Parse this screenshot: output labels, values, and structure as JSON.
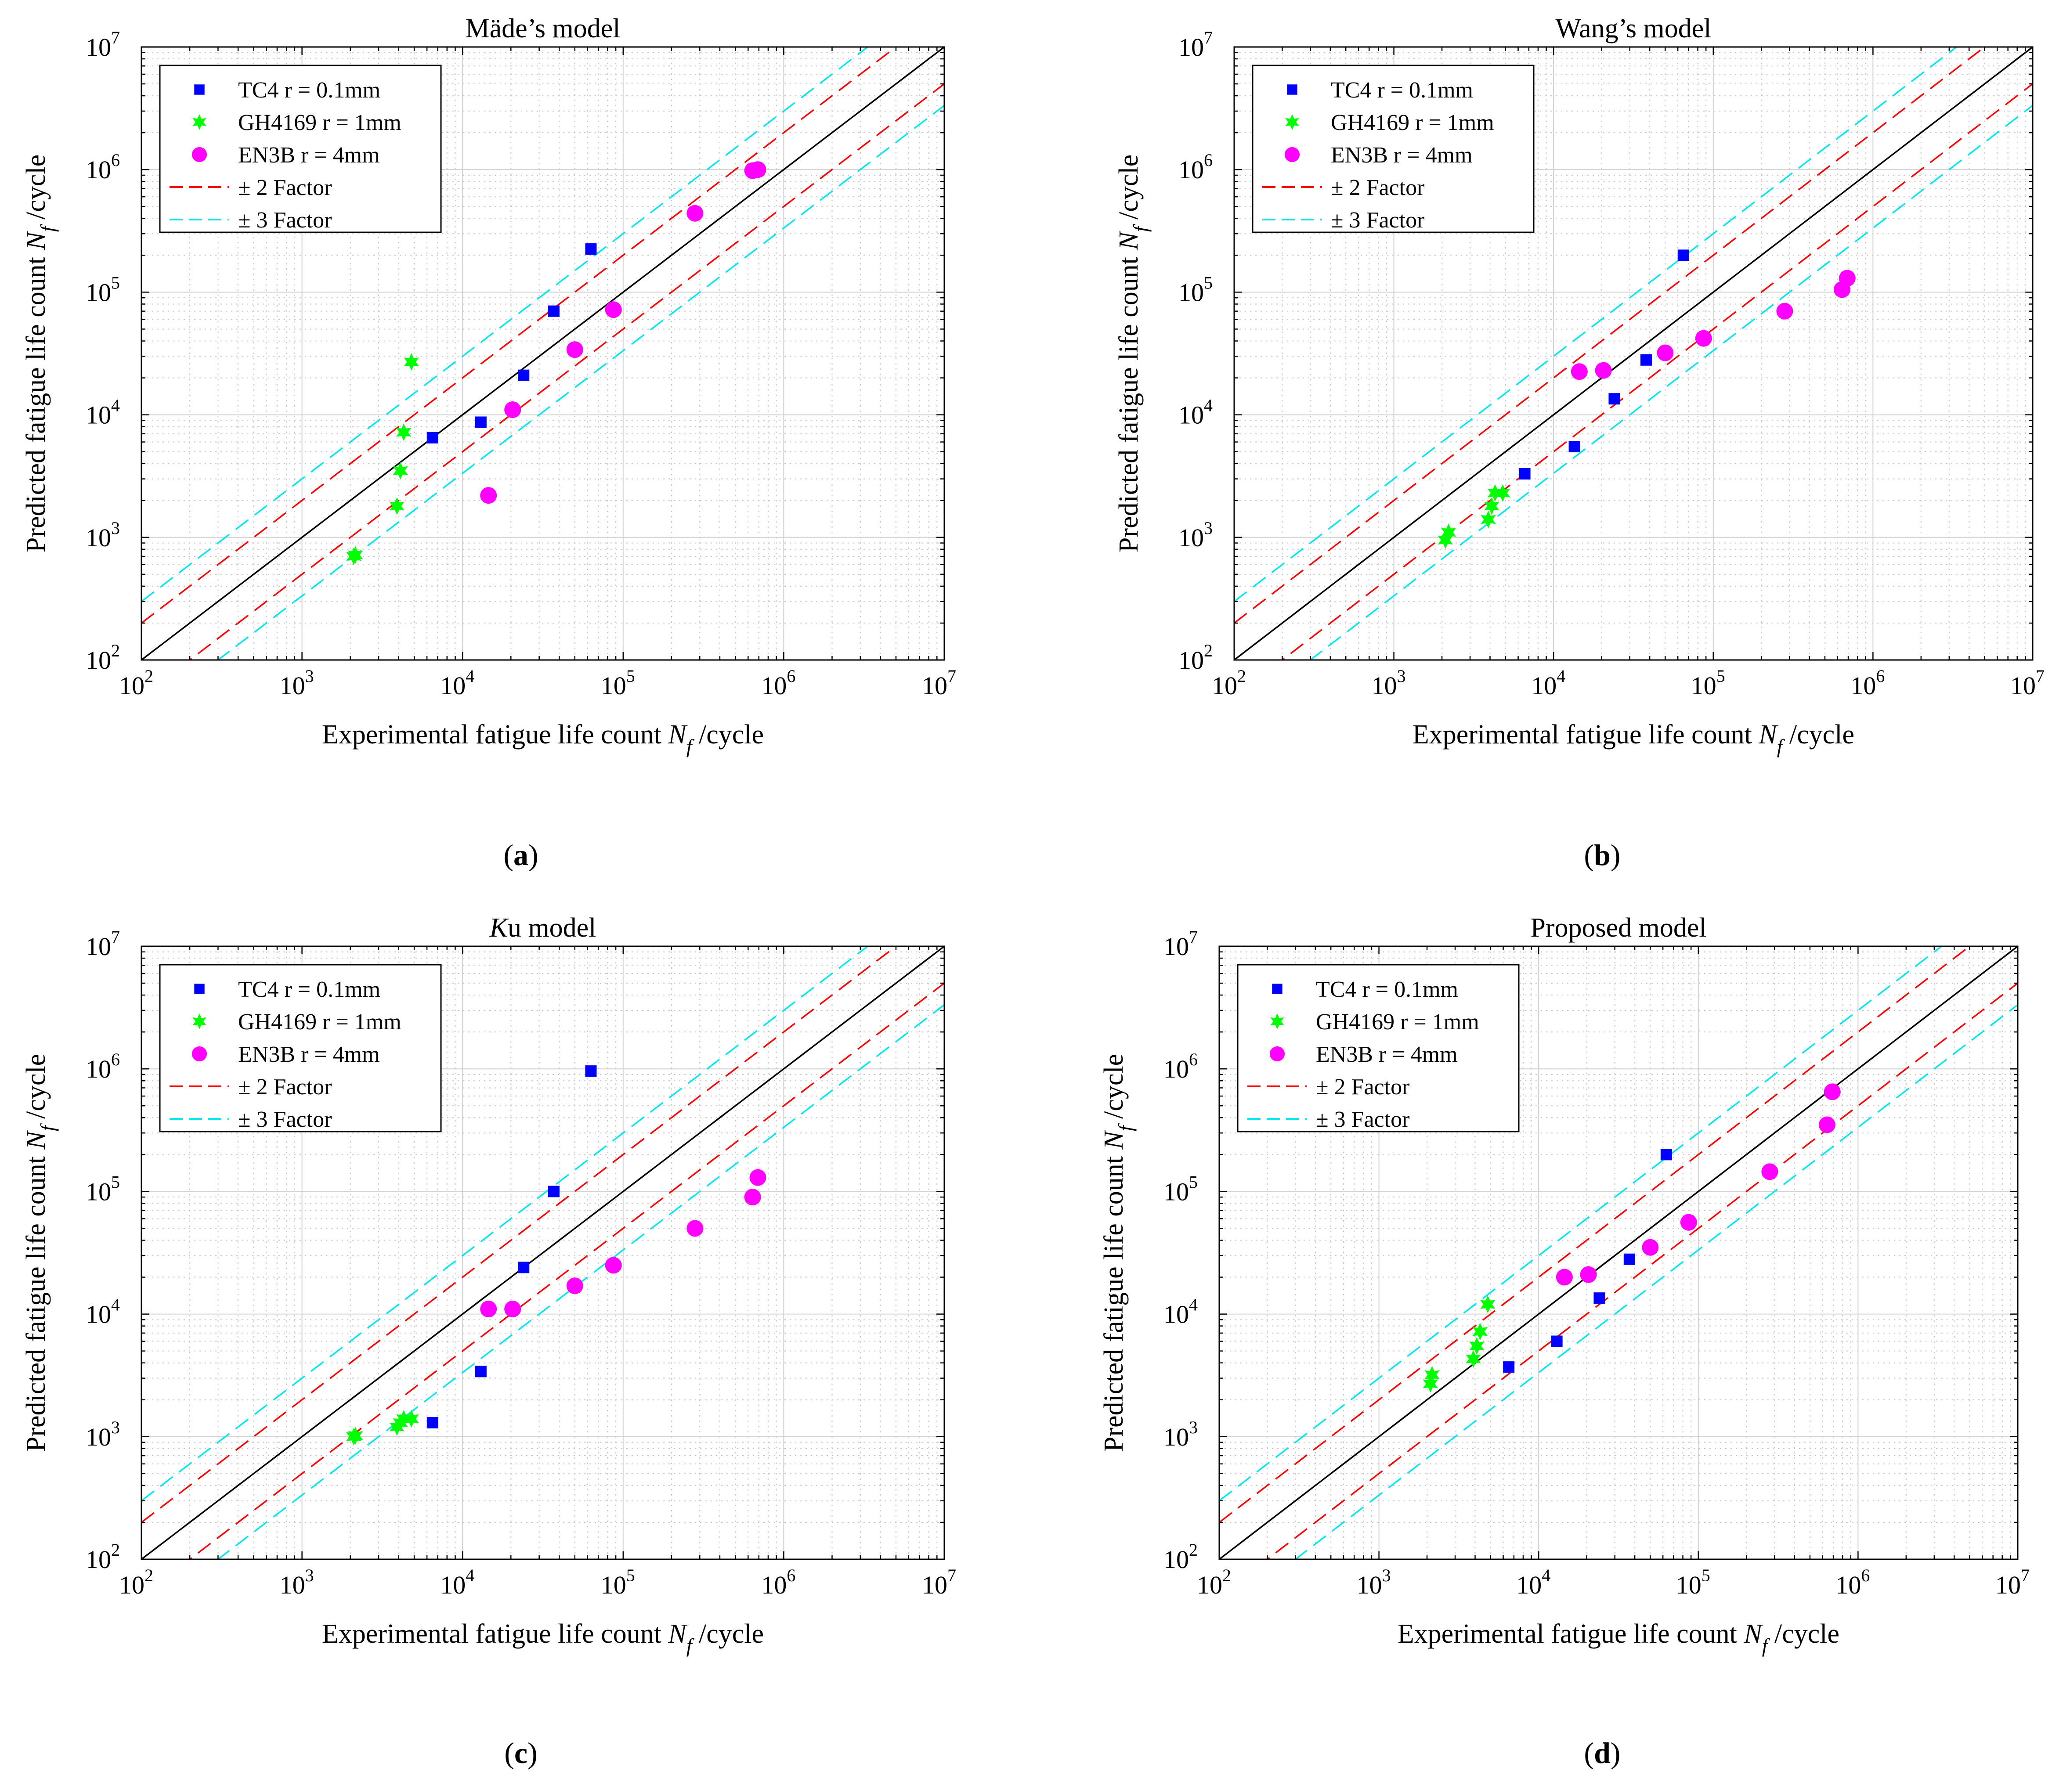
{
  "chart_data": [
    {
      "type": "scatter",
      "panel_label": "a",
      "title": "Mäde’s model",
      "title_parts": [
        {
          "text": "Mäde’s model",
          "italic": false
        }
      ],
      "xlabel": {
        "prefix": "Experimental fatigue life count ",
        "symbol": "N",
        "sub": "f",
        "suffix": " /cycle"
      },
      "ylabel": {
        "prefix": "Predicted fatigue life count ",
        "symbol": "N",
        "sub": "f",
        "suffix": " /cycle"
      },
      "xscale": "log",
      "yscale": "log",
      "xlim": [
        100,
        10000000
      ],
      "ylim": [
        100,
        10000000
      ],
      "grid": true,
      "legend_position": "top-left",
      "series": [
        {
          "name": "TC4 r = 0.1mm",
          "marker": "square",
          "color": "#0000ff",
          "points": [
            [
              6500,
              6500
            ],
            [
              13000,
              8700
            ],
            [
              24000,
              21000
            ],
            [
              37000,
              70000
            ],
            [
              63000,
              225000
            ]
          ]
        },
        {
          "name": "GH4169 r = 1mm",
          "marker": "hexagram",
          "color": "#00ff00",
          "points": [
            [
              2100,
              700
            ],
            [
              2150,
              720
            ],
            [
              3900,
              1800
            ],
            [
              4100,
              3500
            ],
            [
              4300,
              7200
            ],
            [
              4800,
              27000
            ]
          ]
        },
        {
          "name": "EN3B r = 4mm",
          "marker": "circle",
          "color": "#ff00ff",
          "points": [
            [
              14500,
              2200
            ],
            [
              20500,
              11000
            ],
            [
              50000,
              34000
            ],
            [
              87000,
              72000
            ],
            [
              280000,
              440000
            ],
            [
              640000,
              980000
            ],
            [
              690000,
              1000000
            ]
          ]
        }
      ],
      "reference_lines": [
        {
          "name": "± 2 Factor",
          "factors": [
            2,
            0.5
          ],
          "style": "dashed",
          "color": "#ff0000"
        },
        {
          "name": "± 3 Factor",
          "factors": [
            3,
            0.3333
          ],
          "style": "dashed",
          "color": "#00e5ee"
        },
        {
          "name": "",
          "factors": [
            1
          ],
          "style": "solid",
          "color": "#000000"
        }
      ]
    },
    {
      "type": "scatter",
      "panel_label": "b",
      "title": "Wang’s model",
      "title_parts": [
        {
          "text": "Wang’s model",
          "italic": false
        }
      ],
      "xlabel": {
        "prefix": "Experimental fatigue life count ",
        "symbol": "N",
        "sub": "f",
        "suffix": " /cycle"
      },
      "ylabel": {
        "prefix": "Predicted fatigue life count ",
        "symbol": "N",
        "sub": "f",
        "suffix": " /cycle"
      },
      "xscale": "log",
      "yscale": "log",
      "xlim": [
        100,
        10000000
      ],
      "ylim": [
        100,
        10000000
      ],
      "grid": true,
      "legend_position": "top-left",
      "series": [
        {
          "name": "TC4 r = 0.1mm",
          "marker": "square",
          "color": "#0000ff",
          "points": [
            [
              6600,
              3300
            ],
            [
              13500,
              5500
            ],
            [
              24000,
              13500
            ],
            [
              38000,
              28000
            ],
            [
              65000,
              200000
            ]
          ]
        },
        {
          "name": "GH4169 r = 1mm",
          "marker": "hexagram",
          "color": "#00ff00",
          "points": [
            [
              2100,
              950
            ],
            [
              2200,
              1100
            ],
            [
              3900,
              1400
            ],
            [
              4100,
              1800
            ],
            [
              4300,
              2300
            ],
            [
              4800,
              2300
            ]
          ]
        },
        {
          "name": "EN3B r = 4mm",
          "marker": "circle",
          "color": "#ff00ff",
          "points": [
            [
              14500,
              22500
            ],
            [
              20500,
              23000
            ],
            [
              50000,
              32000
            ],
            [
              87000,
              42000
            ],
            [
              280000,
              70000
            ],
            [
              640000,
              105000
            ],
            [
              690000,
              130000
            ]
          ]
        }
      ],
      "reference_lines": [
        {
          "name": "± 2 Factor",
          "factors": [
            2,
            0.5
          ],
          "style": "dashed",
          "color": "#ff0000"
        },
        {
          "name": "± 3 Factor",
          "factors": [
            3,
            0.3333
          ],
          "style": "dashed",
          "color": "#00e5ee"
        },
        {
          "name": "",
          "factors": [
            1
          ],
          "style": "solid",
          "color": "#000000"
        }
      ]
    },
    {
      "type": "scatter",
      "panel_label": "c",
      "title": "Ku model",
      "title_parts": [
        {
          "text": "K",
          "italic": true
        },
        {
          "text": "u model",
          "italic": false
        }
      ],
      "xlabel": {
        "prefix": "Experimental fatigue life count ",
        "symbol": "N",
        "sub": "f",
        "suffix": " /cycle"
      },
      "ylabel": {
        "prefix": "Predicted fatigue life count ",
        "symbol": "N",
        "sub": "f",
        "suffix": " /cycle"
      },
      "xscale": "log",
      "yscale": "log",
      "xlim": [
        100,
        10000000
      ],
      "ylim": [
        100,
        10000000
      ],
      "grid": true,
      "legend_position": "top-left",
      "series": [
        {
          "name": "TC4 r = 0.1mm",
          "marker": "square",
          "color": "#0000ff",
          "points": [
            [
              6500,
              1300
            ],
            [
              13000,
              3400
            ],
            [
              24000,
              24000
            ],
            [
              37000,
              100000
            ],
            [
              63000,
              960000
            ]
          ]
        },
        {
          "name": "GH4169 r = 1mm",
          "marker": "hexagram",
          "color": "#00ff00",
          "points": [
            [
              2100,
              1000
            ],
            [
              2150,
              1020
            ],
            [
              3900,
              1200
            ],
            [
              4100,
              1300
            ],
            [
              4300,
              1400
            ],
            [
              4800,
              1400
            ]
          ]
        },
        {
          "name": "EN3B r = 4mm",
          "marker": "circle",
          "color": "#ff00ff",
          "points": [
            [
              14500,
              11000
            ],
            [
              20500,
              11000
            ],
            [
              50000,
              17000
            ],
            [
              87000,
              25000
            ],
            [
              280000,
              50000
            ],
            [
              640000,
              90000
            ],
            [
              690000,
              130000
            ]
          ]
        }
      ],
      "reference_lines": [
        {
          "name": "± 2 Factor",
          "factors": [
            2,
            0.5
          ],
          "style": "dashed",
          "color": "#ff0000"
        },
        {
          "name": "± 3 Factor",
          "factors": [
            3,
            0.3333
          ],
          "style": "dashed",
          "color": "#00e5ee"
        },
        {
          "name": "",
          "factors": [
            1
          ],
          "style": "solid",
          "color": "#000000"
        }
      ]
    },
    {
      "type": "scatter",
      "panel_label": "d",
      "title": "Proposed model",
      "title_parts": [
        {
          "text": "Proposed model",
          "italic": false
        }
      ],
      "xlabel": {
        "prefix": "Experimental fatigue life count ",
        "symbol": "N",
        "sub": "f",
        "suffix": " /cycle"
      },
      "ylabel": {
        "prefix": "Predicted fatigue life count ",
        "symbol": "N",
        "sub": "f",
        "suffix": " /cycle"
      },
      "xscale": "log",
      "yscale": "log",
      "xlim": [
        100,
        10000000
      ],
      "ylim": [
        100,
        10000000
      ],
      "grid": true,
      "legend_position": "top-left",
      "series": [
        {
          "name": "TC4 r = 0.1mm",
          "marker": "square",
          "color": "#0000ff",
          "points": [
            [
              6500,
              3700
            ],
            [
              13000,
              6000
            ],
            [
              24000,
              13500
            ],
            [
              37000,
              28000
            ],
            [
              63000,
              200000
            ]
          ]
        },
        {
          "name": "GH4169 r = 1mm",
          "marker": "hexagram",
          "color": "#00ff00",
          "points": [
            [
              2100,
              2700
            ],
            [
              2150,
              3200
            ],
            [
              3900,
              4300
            ],
            [
              4100,
              5500
            ],
            [
              4300,
              7200
            ],
            [
              4800,
              12000
            ]
          ]
        },
        {
          "name": "EN3B r = 4mm",
          "marker": "circle",
          "color": "#ff00ff",
          "points": [
            [
              14500,
              20000
            ],
            [
              20500,
              21000
            ],
            [
              50000,
              35000
            ],
            [
              87000,
              56000
            ],
            [
              280000,
              145000
            ],
            [
              640000,
              350000
            ],
            [
              690000,
              650000
            ]
          ]
        }
      ],
      "reference_lines": [
        {
          "name": "± 2 Factor",
          "factors": [
            2,
            0.5
          ],
          "style": "dashed",
          "color": "#ff0000"
        },
        {
          "name": "± 3 Factor",
          "factors": [
            3,
            0.3333
          ],
          "style": "dashed",
          "color": "#00e5ee"
        },
        {
          "name": "",
          "factors": [
            1
          ],
          "style": "solid",
          "color": "#000000"
        }
      ]
    }
  ],
  "tick_labels": [
    {
      "base": "10",
      "exp": "2",
      "value": 100
    },
    {
      "base": "10",
      "exp": "3",
      "value": 1000
    },
    {
      "base": "10",
      "exp": "4",
      "value": 10000
    },
    {
      "base": "10",
      "exp": "5",
      "value": 100000
    },
    {
      "base": "10",
      "exp": "6",
      "value": 1000000
    },
    {
      "base": "10",
      "exp": "7",
      "value": 10000000
    }
  ],
  "legend": [
    {
      "label": "TC4 r = 0.1mm",
      "kind": "square",
      "color": "#0000ff"
    },
    {
      "label": "GH4169 r = 1mm",
      "kind": "hexagram",
      "color": "#00ff00"
    },
    {
      "label": "EN3B r = 4mm",
      "kind": "circle",
      "color": "#ff00ff"
    },
    {
      "label": "± 2 Factor",
      "kind": "dashed",
      "color": "#ff0000"
    },
    {
      "label": "± 3 Factor",
      "kind": "dashed",
      "color": "#00e5ee"
    }
  ],
  "captions": [
    {
      "open": "(",
      "letter": "a",
      "close": ")"
    },
    {
      "open": "(",
      "letter": "b",
      "close": ")"
    },
    {
      "open": "(",
      "letter": "c",
      "close": ")"
    },
    {
      "open": "(",
      "letter": "d",
      "close": ")"
    }
  ]
}
